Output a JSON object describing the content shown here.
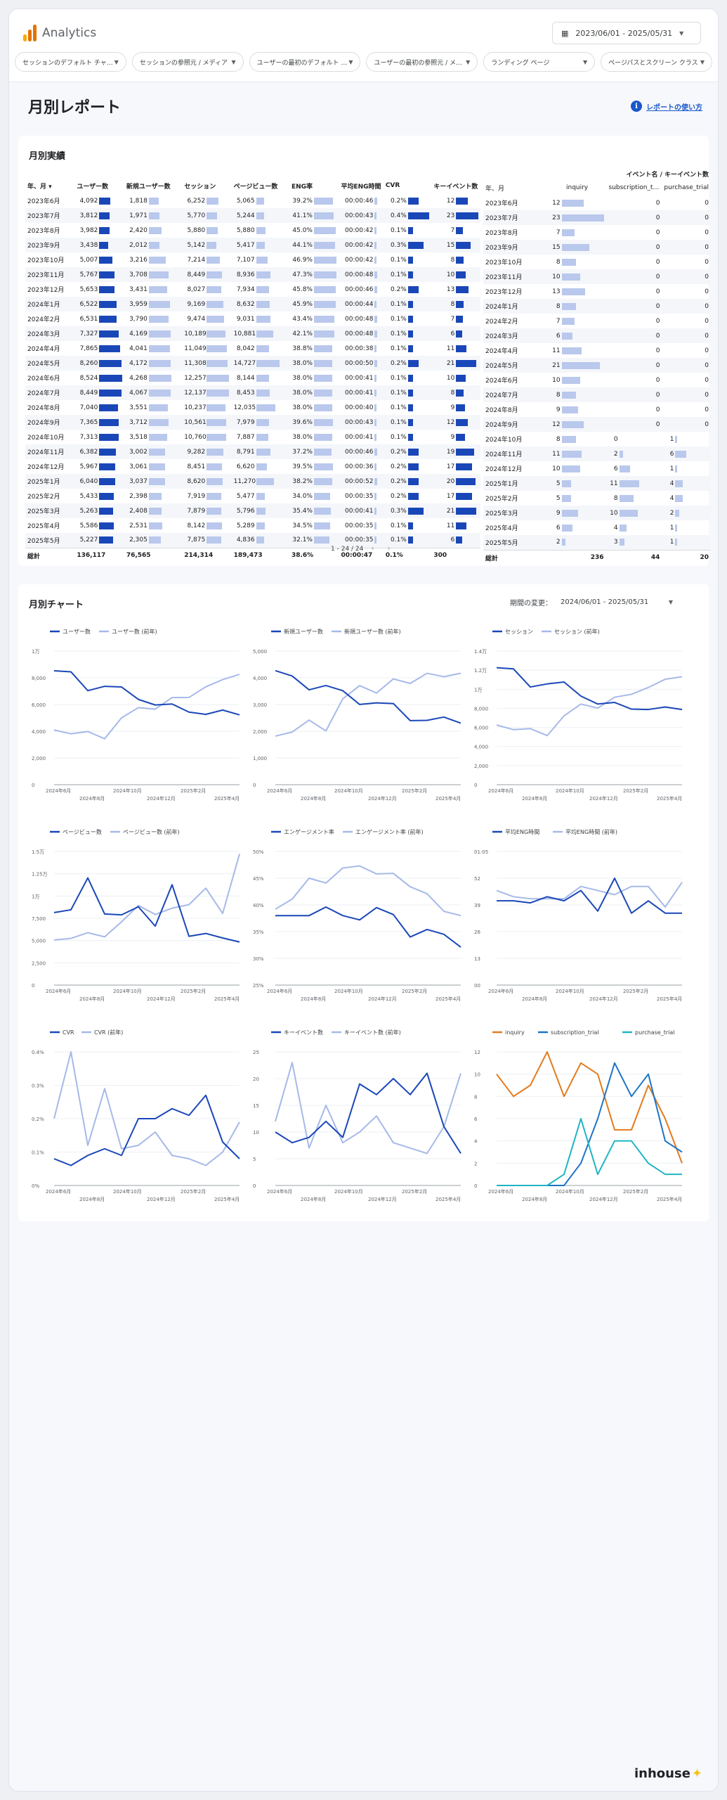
{
  "app": {
    "title": "Analytics",
    "brand": "inhouse",
    "logo_colors": [
      "#f9ab00",
      "#e37400",
      "#e37400"
    ]
  },
  "header": {
    "date_range": "2023/06/01 - 2025/05/31"
  },
  "filters": [
    "セッションのデフォルト チャ…",
    "セッションの参照元 / メディア",
    "ユーザーの最初のデフォルト …",
    "ユーザーの最初の参照元 / メ…",
    "ランディング ページ",
    "ページパスとスクリーン クラス"
  ],
  "page": {
    "title": "月別レポート",
    "help_link": "レポートの使い方"
  },
  "performance": {
    "title": "月別実績",
    "columns": [
      "年、月 ▾",
      "ユーザー数",
      "新規ユーザー数",
      "セッション",
      "ページビュー数",
      "ENG率",
      "平均ENG時間",
      "CVR",
      "キーイベント数"
    ],
    "rows": [
      [
        "2023年6月",
        "4,092",
        "1,818",
        "6,252",
        "5,065",
        "39.2%",
        "00:00:46",
        "0.2%",
        "12"
      ],
      [
        "2023年7月",
        "3,812",
        "1,971",
        "5,770",
        "5,244",
        "41.1%",
        "00:00:43",
        "0.4%",
        "23"
      ],
      [
        "2023年8月",
        "3,982",
        "2,420",
        "5,880",
        "5,880",
        "45.0%",
        "00:00:42",
        "0.1%",
        "7"
      ],
      [
        "2023年9月",
        "3,438",
        "2,012",
        "5,142",
        "5,417",
        "44.1%",
        "00:00:42",
        "0.3%",
        "15"
      ],
      [
        "2023年10月",
        "5,007",
        "3,216",
        "7,214",
        "7,107",
        "46.9%",
        "00:00:42",
        "0.1%",
        "8"
      ],
      [
        "2023年11月",
        "5,767",
        "3,708",
        "8,449",
        "8,936",
        "47.3%",
        "00:00:48",
        "0.1%",
        "10"
      ],
      [
        "2023年12月",
        "5,653",
        "3,431",
        "8,027",
        "7,934",
        "45.8%",
        "00:00:46",
        "0.2%",
        "13"
      ],
      [
        "2024年1月",
        "6,522",
        "3,959",
        "9,169",
        "8,632",
        "45.9%",
        "00:00:44",
        "0.1%",
        "8"
      ],
      [
        "2024年2月",
        "6,531",
        "3,790",
        "9,474",
        "9,031",
        "43.4%",
        "00:00:48",
        "0.1%",
        "7"
      ],
      [
        "2024年3月",
        "7,327",
        "4,169",
        "10,189",
        "10,881",
        "42.1%",
        "00:00:48",
        "0.1%",
        "6"
      ],
      [
        "2024年4月",
        "7,865",
        "4,041",
        "11,049",
        "8,042",
        "38.8%",
        "00:00:38",
        "0.1%",
        "11"
      ],
      [
        "2024年5月",
        "8,260",
        "4,172",
        "11,308",
        "14,727",
        "38.0%",
        "00:00:50",
        "0.2%",
        "21"
      ],
      [
        "2024年6月",
        "8,524",
        "4,268",
        "12,257",
        "8,144",
        "38.0%",
        "00:00:41",
        "0.1%",
        "10"
      ],
      [
        "2024年7月",
        "8,449",
        "4,067",
        "12,137",
        "8,453",
        "38.0%",
        "00:00:41",
        "0.1%",
        "8"
      ],
      [
        "2024年8月",
        "7,040",
        "3,551",
        "10,237",
        "12,035",
        "38.0%",
        "00:00:40",
        "0.1%",
        "9"
      ],
      [
        "2024年9月",
        "7,365",
        "3,712",
        "10,561",
        "7,979",
        "39.6%",
        "00:00:43",
        "0.1%",
        "12"
      ],
      [
        "2024年10月",
        "7,313",
        "3,518",
        "10,760",
        "7,887",
        "38.0%",
        "00:00:41",
        "0.1%",
        "9"
      ],
      [
        "2024年11月",
        "6,382",
        "3,002",
        "9,282",
        "8,791",
        "37.2%",
        "00:00:46",
        "0.2%",
        "19"
      ],
      [
        "2024年12月",
        "5,967",
        "3,061",
        "8,451",
        "6,620",
        "39.5%",
        "00:00:36",
        "0.2%",
        "17"
      ],
      [
        "2025年1月",
        "6,040",
        "3,037",
        "8,620",
        "11,270",
        "38.2%",
        "00:00:52",
        "0.2%",
        "20"
      ],
      [
        "2025年2月",
        "5,433",
        "2,398",
        "7,919",
        "5,477",
        "34.0%",
        "00:00:35",
        "0.2%",
        "17"
      ],
      [
        "2025年3月",
        "5,263",
        "2,408",
        "7,879",
        "5,796",
        "35.4%",
        "00:00:41",
        "0.3%",
        "21"
      ],
      [
        "2025年4月",
        "5,586",
        "2,531",
        "8,142",
        "5,289",
        "34.5%",
        "00:00:35",
        "0.1%",
        "11"
      ],
      [
        "2025年5月",
        "5,227",
        "2,305",
        "7,875",
        "4,836",
        "32.1%",
        "00:00:35",
        "0.1%",
        "6"
      ]
    ],
    "totals": [
      "総計",
      "136,117",
      "76,565",
      "214,314",
      "189,473",
      "38.6%",
      "00:00:47",
      "0.1%",
      "300"
    ],
    "pager": "1 - 24 / 24",
    "events_header": "イベント名 / キーイベント数",
    "event_columns": [
      "年、月",
      "inquiry",
      "subscription_t…",
      "purchase_trial"
    ],
    "event_rows": [
      [
        "2023年6月",
        "12",
        "0",
        "0"
      ],
      [
        "2023年7月",
        "23",
        "0",
        "0"
      ],
      [
        "2023年8月",
        "7",
        "0",
        "0"
      ],
      [
        "2023年9月",
        "15",
        "0",
        "0"
      ],
      [
        "2023年10月",
        "8",
        "0",
        "0"
      ],
      [
        "2023年11月",
        "10",
        "0",
        "0"
      ],
      [
        "2023年12月",
        "13",
        "0",
        "0"
      ],
      [
        "2024年1月",
        "8",
        "0",
        "0"
      ],
      [
        "2024年2月",
        "7",
        "0",
        "0"
      ],
      [
        "2024年3月",
        "6",
        "0",
        "0"
      ],
      [
        "2024年4月",
        "11",
        "0",
        "0"
      ],
      [
        "2024年5月",
        "21",
        "0",
        "0"
      ],
      [
        "2024年6月",
        "10",
        "0",
        "0"
      ],
      [
        "2024年7月",
        "8",
        "0",
        "0"
      ],
      [
        "2024年8月",
        "9",
        "0",
        "0"
      ],
      [
        "2024年9月",
        "12",
        "0",
        "0"
      ],
      [
        "2024年10月",
        "8",
        "0",
        "1"
      ],
      [
        "2024年11月",
        "11",
        "2",
        "6"
      ],
      [
        "2024年12月",
        "10",
        "6",
        "1"
      ],
      [
        "2025年1月",
        "5",
        "11",
        "4"
      ],
      [
        "2025年2月",
        "5",
        "8",
        "4"
      ],
      [
        "2025年3月",
        "9",
        "10",
        "2"
      ],
      [
        "2025年4月",
        "6",
        "4",
        "1"
      ],
      [
        "2025年5月",
        "2",
        "3",
        "1"
      ]
    ],
    "event_totals": [
      "総計",
      "236",
      "44",
      "20"
    ]
  },
  "charts_section": {
    "title": "月別チャート",
    "period_label": "期間の変更：",
    "period_value": "2024/06/01 - 2025/05/31"
  },
  "colors": {
    "current": "#1a47b8",
    "previous": "#a6b9e8",
    "bar": "#1a47b8",
    "bar_light": "#b9c8ec",
    "inquiry": "#e37b1e",
    "subscription": "#1d74c7",
    "purchase": "#1fb5c4"
  },
  "chart_data": [
    {
      "type": "line",
      "legend": [
        "ユーザー数",
        "ユーザー数 (前年)"
      ],
      "x": [
        "2024年6月",
        "2024年7月",
        "2024年8月",
        "2024年9月",
        "2024年10月",
        "2024年11月",
        "2024年12月",
        "2025年1月",
        "2025年2月",
        "2025年3月",
        "2025年4月",
        "2025年5月"
      ],
      "x_top": [
        "2024年6月",
        "2024年10月",
        "2025年2月"
      ],
      "x_bottom": [
        "2024年8月",
        "2024年12月",
        "2025年4月"
      ],
      "series": [
        {
          "name": "ユーザー数",
          "values": [
            8524,
            8449,
            7040,
            7365,
            7313,
            6382,
            5967,
            6040,
            5433,
            5263,
            5586,
            5227
          ]
        },
        {
          "name": "ユーザー数 (前年)",
          "values": [
            4092,
            3812,
            3982,
            3438,
            5007,
            5767,
            5653,
            6522,
            6531,
            7327,
            7865,
            8260
          ]
        }
      ],
      "ylim": [
        0,
        10000
      ],
      "yticks": [
        0,
        2000,
        4000,
        6000,
        8000,
        10000
      ],
      "ytick_labels": [
        "0",
        "2,000",
        "4,000",
        "6,000",
        "8,000",
        "1万"
      ]
    },
    {
      "type": "line",
      "legend": [
        "新規ユーザー数",
        "新規ユーザー数 (前年)"
      ],
      "x_top": [
        "2024年6月",
        "2024年10月",
        "2025年2月"
      ],
      "x_bottom": [
        "2024年8月",
        "2024年12月",
        "2025年4月"
      ],
      "series": [
        {
          "name": "新規ユーザー数",
          "values": [
            4268,
            4067,
            3551,
            3712,
            3518,
            3002,
            3061,
            3037,
            2398,
            2408,
            2531,
            2305
          ]
        },
        {
          "name": "新規ユーザー数 (前年)",
          "values": [
            1818,
            1971,
            2420,
            2012,
            3216,
            3708,
            3431,
            3959,
            3790,
            4169,
            4041,
            4172
          ]
        }
      ],
      "ylim": [
        0,
        5000
      ],
      "yticks": [
        0,
        1000,
        2000,
        3000,
        4000,
        5000
      ],
      "ytick_labels": [
        "0",
        "1,000",
        "2,000",
        "3,000",
        "4,000",
        "5,000"
      ]
    },
    {
      "type": "line",
      "legend": [
        "セッション",
        "セッション (前年)"
      ],
      "x_top": [
        "2024年6月",
        "2024年10月",
        "2025年2月"
      ],
      "x_bottom": [
        "2024年8月",
        "2024年12月",
        "2025年4月"
      ],
      "series": [
        {
          "name": "セッション",
          "values": [
            12257,
            12137,
            10237,
            10561,
            10760,
            9282,
            8451,
            8620,
            7919,
            7879,
            8142,
            7875
          ]
        },
        {
          "name": "セッション (前年)",
          "values": [
            6252,
            5770,
            5880,
            5142,
            7214,
            8449,
            8027,
            9169,
            9474,
            10189,
            11049,
            11308
          ]
        }
      ],
      "ylim": [
        0,
        14000
      ],
      "yticks": [
        0,
        2000,
        4000,
        6000,
        8000,
        10000,
        12000,
        14000
      ],
      "ytick_labels": [
        "0",
        "2,000",
        "4,000",
        "6,000",
        "8,000",
        "1万",
        "1.2万",
        "1.4万"
      ]
    },
    {
      "type": "line",
      "legend": [
        "ページビュー数",
        "ページビュー数 (前年)"
      ],
      "x_top": [
        "2024年6月",
        "2024年10月",
        "2025年2月"
      ],
      "x_bottom": [
        "2024年8月",
        "2024年12月",
        "2025年4月"
      ],
      "series": [
        {
          "name": "ページビュー数",
          "values": [
            8144,
            8453,
            12035,
            7979,
            7887,
            8791,
            6620,
            11270,
            5477,
            5796,
            5289,
            4836
          ]
        },
        {
          "name": "ページビュー数 (前年)",
          "values": [
            5065,
            5244,
            5880,
            5417,
            7107,
            8936,
            7934,
            8632,
            9031,
            10881,
            8042,
            14727
          ]
        }
      ],
      "ylim": [
        0,
        15000
      ],
      "yticks": [
        0,
        2500,
        5000,
        7500,
        10000,
        12500,
        15000
      ],
      "ytick_labels": [
        "0",
        "2,500",
        "5,000",
        "7,500",
        "1万",
        "1.25万",
        "1.5万"
      ]
    },
    {
      "type": "line",
      "legend": [
        "エンゲージメント率",
        "エンゲージメント率 (前年)"
      ],
      "x_top": [
        "2024年6月",
        "2024年10月",
        "2025年2月"
      ],
      "x_bottom": [
        "2024年8月",
        "2024年12月",
        "2025年4月"
      ],
      "series": [
        {
          "name": "エンゲージメント率",
          "values": [
            38.0,
            38.0,
            38.0,
            39.6,
            38.0,
            37.2,
            39.5,
            38.2,
            34.0,
            35.4,
            34.5,
            32.1
          ]
        },
        {
          "name": "エンゲージメント率 (前年)",
          "values": [
            39.2,
            41.1,
            45.0,
            44.1,
            46.9,
            47.3,
            45.8,
            45.9,
            43.4,
            42.1,
            38.8,
            38.0
          ]
        }
      ],
      "ylim": [
        25,
        50
      ],
      "yticks": [
        25,
        30,
        35,
        40,
        45,
        50
      ],
      "ytick_labels": [
        "25%",
        "30%",
        "35%",
        "40%",
        "45%",
        "50%"
      ]
    },
    {
      "type": "line",
      "legend": [
        "平均ENG時間",
        "平均ENG時間 (前年)"
      ],
      "x_top": [
        "2024年6月",
        "2024年10月",
        "2025年2月"
      ],
      "x_bottom": [
        "2024年8月",
        "2024年12月",
        "2025年4月"
      ],
      "series": [
        {
          "name": "平均ENG時間",
          "values": [
            41,
            41,
            40,
            43,
            41,
            46,
            36,
            52,
            35,
            41,
            35,
            35
          ]
        },
        {
          "name": "平均ENG時間 (前年)",
          "values": [
            46,
            43,
            42,
            42,
            42,
            48,
            46,
            44,
            48,
            48,
            38,
            50
          ]
        }
      ],
      "ylim": [
        0,
        65
      ],
      "yticks": [
        0,
        13,
        26,
        39,
        52,
        65
      ],
      "ytick_labels": [
        "00",
        "13",
        "26",
        "39",
        "52",
        "01:05"
      ]
    },
    {
      "type": "line",
      "legend": [
        "CVR",
        "CVR (前年)"
      ],
      "x_top": [
        "2024年6月",
        "2024年10月",
        "2025年2月"
      ],
      "x_bottom": [
        "2024年8月",
        "2024年12月",
        "2025年4月"
      ],
      "series": [
        {
          "name": "CVR",
          "values": [
            0.08,
            0.06,
            0.09,
            0.11,
            0.09,
            0.2,
            0.2,
            0.23,
            0.21,
            0.27,
            0.13,
            0.08
          ]
        },
        {
          "name": "CVR (前年)",
          "values": [
            0.2,
            0.4,
            0.12,
            0.29,
            0.11,
            0.12,
            0.16,
            0.09,
            0.08,
            0.06,
            0.1,
            0.19
          ]
        }
      ],
      "ylim": [
        0,
        0.4
      ],
      "yticks": [
        0,
        0.1,
        0.2,
        0.3,
        0.4
      ],
      "ytick_labels": [
        "0%",
        "0.1%",
        "0.2%",
        "0.3%",
        "0.4%"
      ]
    },
    {
      "type": "line",
      "legend": [
        "キーイベント数",
        "キーイベント数 (前年)"
      ],
      "x_top": [
        "2024年6月",
        "2024年10月",
        "2025年2月"
      ],
      "x_bottom": [
        "2024年8月",
        "2024年12月",
        "2025年4月"
      ],
      "series": [
        {
          "name": "キーイベント数",
          "values": [
            10,
            8,
            9,
            12,
            9,
            19,
            17,
            20,
            17,
            21,
            11,
            6
          ]
        },
        {
          "name": "キーイベント数 (前年)",
          "values": [
            12,
            23,
            7,
            15,
            8,
            10,
            13,
            8,
            7,
            6,
            11,
            21
          ]
        }
      ],
      "ylim": [
        0,
        25
      ],
      "yticks": [
        0,
        5,
        10,
        15,
        20,
        25
      ],
      "ytick_labels": [
        "0",
        "5",
        "10",
        "15",
        "20",
        "25"
      ]
    },
    {
      "type": "line",
      "legend": [
        "inquiry",
        "subscription_trial",
        "purchase_trial"
      ],
      "x_top": [
        "2024年6月",
        "2024年10月",
        "2025年2月"
      ],
      "x_bottom": [
        "2024年8月",
        "2024年12月",
        "2025年4月"
      ],
      "series": [
        {
          "name": "inquiry",
          "values": [
            10,
            8,
            9,
            12,
            8,
            11,
            10,
            5,
            5,
            9,
            6,
            2
          ]
        },
        {
          "name": "subscription_trial",
          "values": [
            0,
            0,
            0,
            0,
            0,
            2,
            6,
            11,
            8,
            10,
            4,
            3
          ]
        },
        {
          "name": "purchase_trial",
          "values": [
            0,
            0,
            0,
            0,
            1,
            6,
            1,
            4,
            4,
            2,
            1,
            1
          ]
        }
      ],
      "ylim": [
        0,
        12
      ],
      "yticks": [
        0,
        2,
        4,
        6,
        8,
        10,
        12
      ],
      "ytick_labels": [
        "0",
        "2",
        "4",
        "6",
        "8",
        "10",
        "12"
      ]
    }
  ]
}
